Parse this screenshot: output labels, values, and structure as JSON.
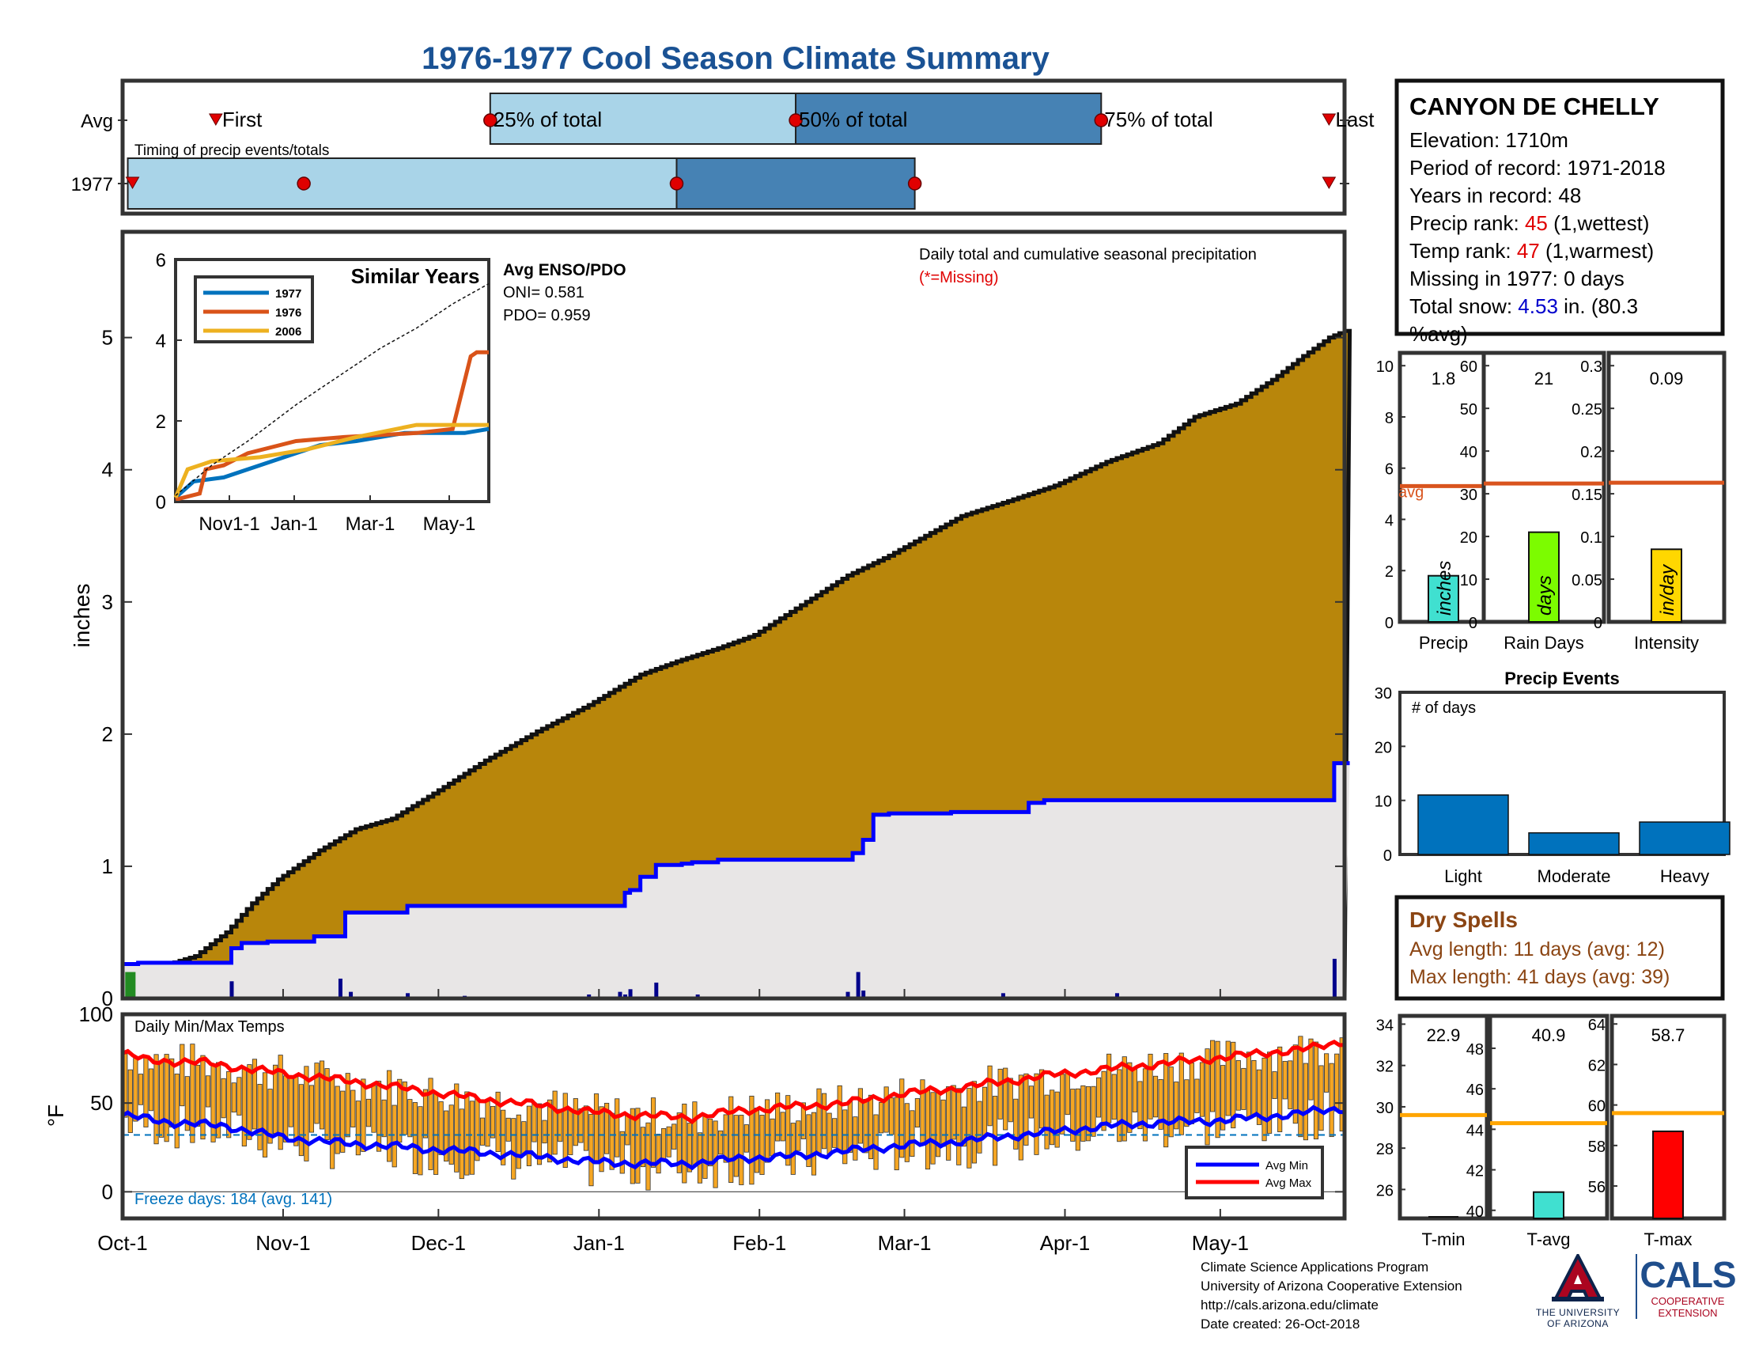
{
  "title": "1976-1977 Cool Season Climate Summary",
  "colors": {
    "title": "#1a5294",
    "light_blue": "#a9d4e8",
    "mid_blue": "#4682b4",
    "cumulative_fill": "#b8860b",
    "avg_fill": "#e8e6e6",
    "avg_line": "#0000ff",
    "bar_dark_blue": "#00008b",
    "marker_red": "#e00000",
    "avg_orange": "#d9541e",
    "precip_bar": "#40e0d0",
    "raindays_bar": "#7cfc00",
    "intensity_bar": "#ffd700",
    "event_bar": "#0072bd",
    "temp_bar": "#f5a623",
    "tavg_bar": "#40e0d0",
    "tmax_bar": "#ff0000",
    "temp_avg_line": "#ffa500",
    "dry_text": "#8b4513",
    "freeze_text": "#0072bd",
    "highlight_red": "#e00000",
    "highlight_blue": "#0000cc"
  },
  "timing": {
    "row_labels": [
      "Avg",
      "1977"
    ],
    "subtitle": "Timing of precip events/totals",
    "avg_labels": {
      "first": "First",
      "p25": "25% of total",
      "p50": "50% of total",
      "p75": "75% of total",
      "last": "Last"
    },
    "avg_days": {
      "first": 18,
      "p25": 71,
      "p50": 130,
      "p75": 189,
      "last": 233
    },
    "y1977_days": {
      "first": 1,
      "p25": 35,
      "p50": 107,
      "p75": 153,
      "last": 233
    }
  },
  "info_box": {
    "station": "CANYON DE CHELLY",
    "elevation": "Elevation: 1710m",
    "period": "Period of record: 1971-2018",
    "years": "Years in record: 48",
    "precip_rank_label": "Precip rank: ",
    "precip_rank_value": "45",
    "precip_rank_note": " (1,wettest)",
    "temp_rank_label": "Temp rank: ",
    "temp_rank_value": "47",
    "temp_rank_note": " (1,warmest)",
    "missing": "Missing in 1977: 0 days",
    "snow_label": "Total snow: ",
    "snow_value": "4.53",
    "snow_note": " in. (80.3",
    "snow_note2": "%avg)"
  },
  "main_chart": {
    "ylabel": "inches",
    "title": "Daily total and cumulative seasonal precipitation",
    "missing_note": "(*=Missing)",
    "ylim": [
      0,
      5.8
    ],
    "yticks": [
      0,
      1,
      2,
      3,
      4,
      5
    ],
    "ndays": 236,
    "cumulative_anchors": [
      [
        0,
        0.2
      ],
      [
        3,
        0.21
      ],
      [
        8,
        0.25
      ],
      [
        14,
        0.32
      ],
      [
        20,
        0.5
      ],
      [
        25,
        0.72
      ],
      [
        30,
        0.9
      ],
      [
        38,
        1.12
      ],
      [
        45,
        1.28
      ],
      [
        52,
        1.36
      ],
      [
        60,
        1.55
      ],
      [
        70,
        1.8
      ],
      [
        80,
        2.02
      ],
      [
        90,
        2.22
      ],
      [
        100,
        2.45
      ],
      [
        107,
        2.55
      ],
      [
        115,
        2.65
      ],
      [
        122,
        2.75
      ],
      [
        130,
        2.95
      ],
      [
        140,
        3.2
      ],
      [
        148,
        3.35
      ],
      [
        155,
        3.5
      ],
      [
        162,
        3.65
      ],
      [
        170,
        3.75
      ],
      [
        180,
        3.88
      ],
      [
        190,
        4.06
      ],
      [
        200,
        4.2
      ],
      [
        207,
        4.4
      ],
      [
        215,
        4.5
      ],
      [
        222,
        4.68
      ],
      [
        228,
        4.86
      ],
      [
        233,
        5.0
      ],
      [
        236,
        5.05
      ]
    ],
    "avg_steps": [
      [
        0,
        0.26
      ],
      [
        3,
        0.27
      ],
      [
        15,
        0.27
      ],
      [
        21,
        0.38
      ],
      [
        23,
        0.42
      ],
      [
        28,
        0.43
      ],
      [
        37,
        0.47
      ],
      [
        43,
        0.65
      ],
      [
        55,
        0.7
      ],
      [
        64,
        0.7
      ],
      [
        75,
        0.7
      ],
      [
        85,
        0.7
      ],
      [
        93,
        0.7
      ],
      [
        97,
        0.8
      ],
      [
        98,
        0.82
      ],
      [
        100,
        0.92
      ],
      [
        103,
        1.01
      ],
      [
        108,
        1.02
      ],
      [
        110,
        1.03
      ],
      [
        115,
        1.05
      ],
      [
        120,
        1.05
      ],
      [
        130,
        1.05
      ],
      [
        140,
        1.05
      ],
      [
        141,
        1.1
      ],
      [
        143,
        1.2
      ],
      [
        145,
        1.39
      ],
      [
        148,
        1.4
      ],
      [
        155,
        1.4
      ],
      [
        160,
        1.41
      ],
      [
        170,
        1.41
      ],
      [
        175,
        1.48
      ],
      [
        178,
        1.5
      ],
      [
        190,
        1.5
      ],
      [
        210,
        1.5
      ],
      [
        220,
        1.5
      ],
      [
        225,
        1.5
      ],
      [
        234,
        1.78
      ],
      [
        236,
        1.78
      ]
    ],
    "daily_bars": [
      [
        21,
        0.13
      ],
      [
        42,
        0.15
      ],
      [
        44,
        0.05
      ],
      [
        55,
        0.04
      ],
      [
        66,
        0.02
      ],
      [
        90,
        0.03
      ],
      [
        96,
        0.05
      ],
      [
        97,
        0.03
      ],
      [
        98,
        0.07
      ],
      [
        103,
        0.12
      ],
      [
        111,
        0.03
      ],
      [
        140,
        0.05
      ],
      [
        142,
        0.2
      ],
      [
        143,
        0.06
      ],
      [
        170,
        0.04
      ],
      [
        192,
        0.04
      ],
      [
        234,
        0.3
      ]
    ]
  },
  "inset": {
    "title": "Similar Years",
    "legend": [
      "1977",
      "1976",
      "2006"
    ],
    "series_colors": [
      "#0072bd",
      "#d95319",
      "#edb120"
    ],
    "yticks": [
      0,
      2,
      4,
      6
    ],
    "xlabels": [
      "Nov1-1",
      "Jan-1",
      "Mar-1",
      "May-1"
    ],
    "ylim": [
      0,
      6
    ],
    "series": [
      {
        "name": "1977",
        "points": [
          [
            0,
            0.1
          ],
          [
            15,
            0.5
          ],
          [
            40,
            0.6
          ],
          [
            80,
            1.0
          ],
          [
            120,
            1.4
          ],
          [
            150,
            1.5
          ],
          [
            190,
            1.7
          ],
          [
            240,
            1.7
          ],
          [
            260,
            1.8
          ]
        ]
      },
      {
        "name": "1976",
        "points": [
          [
            0,
            0.05
          ],
          [
            20,
            0.2
          ],
          [
            25,
            0.8
          ],
          [
            40,
            0.9
          ],
          [
            60,
            1.2
          ],
          [
            100,
            1.5
          ],
          [
            140,
            1.6
          ],
          [
            200,
            1.7
          ],
          [
            230,
            1.8
          ],
          [
            240,
            3.0
          ],
          [
            245,
            3.6
          ],
          [
            250,
            3.7
          ],
          [
            260,
            3.7
          ]
        ]
      },
      {
        "name": "2006",
        "points": [
          [
            0,
            0.1
          ],
          [
            10,
            0.8
          ],
          [
            30,
            1.0
          ],
          [
            70,
            1.1
          ],
          [
            110,
            1.3
          ],
          [
            150,
            1.6
          ],
          [
            200,
            1.9
          ],
          [
            260,
            1.9
          ]
        ]
      },
      {
        "name": "avg",
        "points": [
          [
            0,
            0.15
          ],
          [
            30,
            0.9
          ],
          [
            60,
            1.5
          ],
          [
            100,
            2.4
          ],
          [
            140,
            3.2
          ],
          [
            170,
            3.8
          ],
          [
            200,
            4.3
          ],
          [
            230,
            4.9
          ],
          [
            260,
            5.4
          ]
        ]
      }
    ],
    "enso_title": "Avg ENSO/PDO",
    "oni": "ONI= 0.581",
    "pdo": "PDO= 0.959"
  },
  "temps": {
    "title": "Daily Min/Max Temps",
    "ylabel": "°F",
    "ylim": [
      -15,
      100
    ],
    "yticks": [
      0,
      50,
      100
    ],
    "freeze_line": 32,
    "freeze_text": "Freeze days: 184 (avg. 141)",
    "legend": [
      "Avg Min",
      "Avg Max"
    ],
    "avg_max_anchors": [
      [
        0,
        78
      ],
      [
        5,
        74
      ],
      [
        15,
        73
      ],
      [
        30,
        67
      ],
      [
        45,
        62
      ],
      [
        60,
        56
      ],
      [
        70,
        52
      ],
      [
        80,
        49
      ],
      [
        90,
        45
      ],
      [
        100,
        43
      ],
      [
        110,
        42
      ],
      [
        120,
        46
      ],
      [
        130,
        48
      ],
      [
        140,
        50
      ],
      [
        150,
        55
      ],
      [
        160,
        58
      ],
      [
        170,
        62
      ],
      [
        180,
        66
      ],
      [
        190,
        69
      ],
      [
        200,
        72
      ],
      [
        210,
        75
      ],
      [
        220,
        78
      ],
      [
        230,
        81
      ],
      [
        236,
        85
      ]
    ],
    "avg_min_anchors": [
      [
        0,
        43
      ],
      [
        10,
        39
      ],
      [
        20,
        37
      ],
      [
        30,
        31
      ],
      [
        40,
        28
      ],
      [
        50,
        26
      ],
      [
        60,
        24
      ],
      [
        70,
        22
      ],
      [
        80,
        20
      ],
      [
        90,
        17
      ],
      [
        100,
        16
      ],
      [
        110,
        16
      ],
      [
        120,
        19
      ],
      [
        130,
        20
      ],
      [
        140,
        23
      ],
      [
        150,
        26
      ],
      [
        160,
        28
      ],
      [
        170,
        31
      ],
      [
        180,
        34
      ],
      [
        190,
        37
      ],
      [
        200,
        39
      ],
      [
        210,
        40
      ],
      [
        220,
        42
      ],
      [
        236,
        47
      ]
    ]
  },
  "xaxis": {
    "labels": [
      "Oct-1",
      "Nov-1",
      "Dec-1",
      "Jan-1",
      "Feb-1",
      "Mar-1",
      "Apr-1",
      "May-1"
    ],
    "days": [
      0,
      31,
      61,
      92,
      123,
      151,
      182,
      212
    ]
  },
  "mini_precip": {
    "panels": [
      {
        "label": "Precip",
        "value_text": "1.8",
        "value": 1.8,
        "avg": 5.3,
        "ylim": [
          0,
          10.5
        ],
        "yticks": [
          "0",
          "2",
          "4",
          "6",
          "8",
          "10"
        ],
        "unit": "inches",
        "avg_label": "avg"
      },
      {
        "label": "Rain Days",
        "value_text": "21",
        "value": 21,
        "avg": 32.4,
        "ylim": [
          0,
          63
        ],
        "yticks": [
          "0",
          "10",
          "20",
          "30",
          "40",
          "50",
          "60"
        ],
        "unit": "days"
      },
      {
        "label": "Intensity",
        "value_text": "0.09",
        "value": 0.085,
        "avg": 0.163,
        "ylim": [
          0,
          0.315
        ],
        "yticks": [
          "0",
          "0.05",
          "0.1",
          "0.15",
          "0.2",
          "0.25",
          "0.3"
        ],
        "unit": "in/day"
      }
    ]
  },
  "events": {
    "title": "Precip Events",
    "sublabel": "# of days",
    "categories": [
      "Light",
      "Moderate",
      "Heavy"
    ],
    "values": [
      11,
      4,
      6
    ],
    "ylim": [
      0,
      30
    ],
    "yticks": [
      "0",
      "10",
      "20",
      "30"
    ]
  },
  "dry_spells": {
    "title": "Dry Spells",
    "avg_length": "Avg length: 11 days (avg: 12)",
    "max_length": "Max length: 41 days (avg: 39)"
  },
  "mini_temps": {
    "panels": [
      {
        "label": "T-min",
        "value_text": "22.9",
        "value": 22.9,
        "avg": 29.6,
        "ylim": [
          24.6,
          34.4
        ],
        "yticks": [
          "26",
          "28",
          "30",
          "32",
          "34"
        ]
      },
      {
        "label": "T-avg",
        "value_text": "40.9",
        "value": 40.9,
        "avg": 44.3,
        "ylim": [
          39.6,
          49.6
        ],
        "yticks": [
          "40",
          "42",
          "44",
          "46",
          "48"
        ]
      },
      {
        "label": "T-max",
        "value_text": "58.7",
        "value": 58.7,
        "avg": 59.6,
        "ylim": [
          54.4,
          64.4
        ],
        "yticks": [
          "56",
          "58",
          "60",
          "62",
          "64"
        ]
      }
    ]
  },
  "footer": {
    "lines": [
      "Climate Science Applications Program",
      "University of Arizona Cooperative Extension",
      "http://cals.arizona.edu/climate",
      " Date created: 26-Oct-2018"
    ],
    "ua_line1": "THE UNIVERSITY",
    "ua_line2": "OF ARIZONA",
    "cals": "CALS",
    "coop1": "COOPERATIVE",
    "coop2": "EXTENSION"
  }
}
